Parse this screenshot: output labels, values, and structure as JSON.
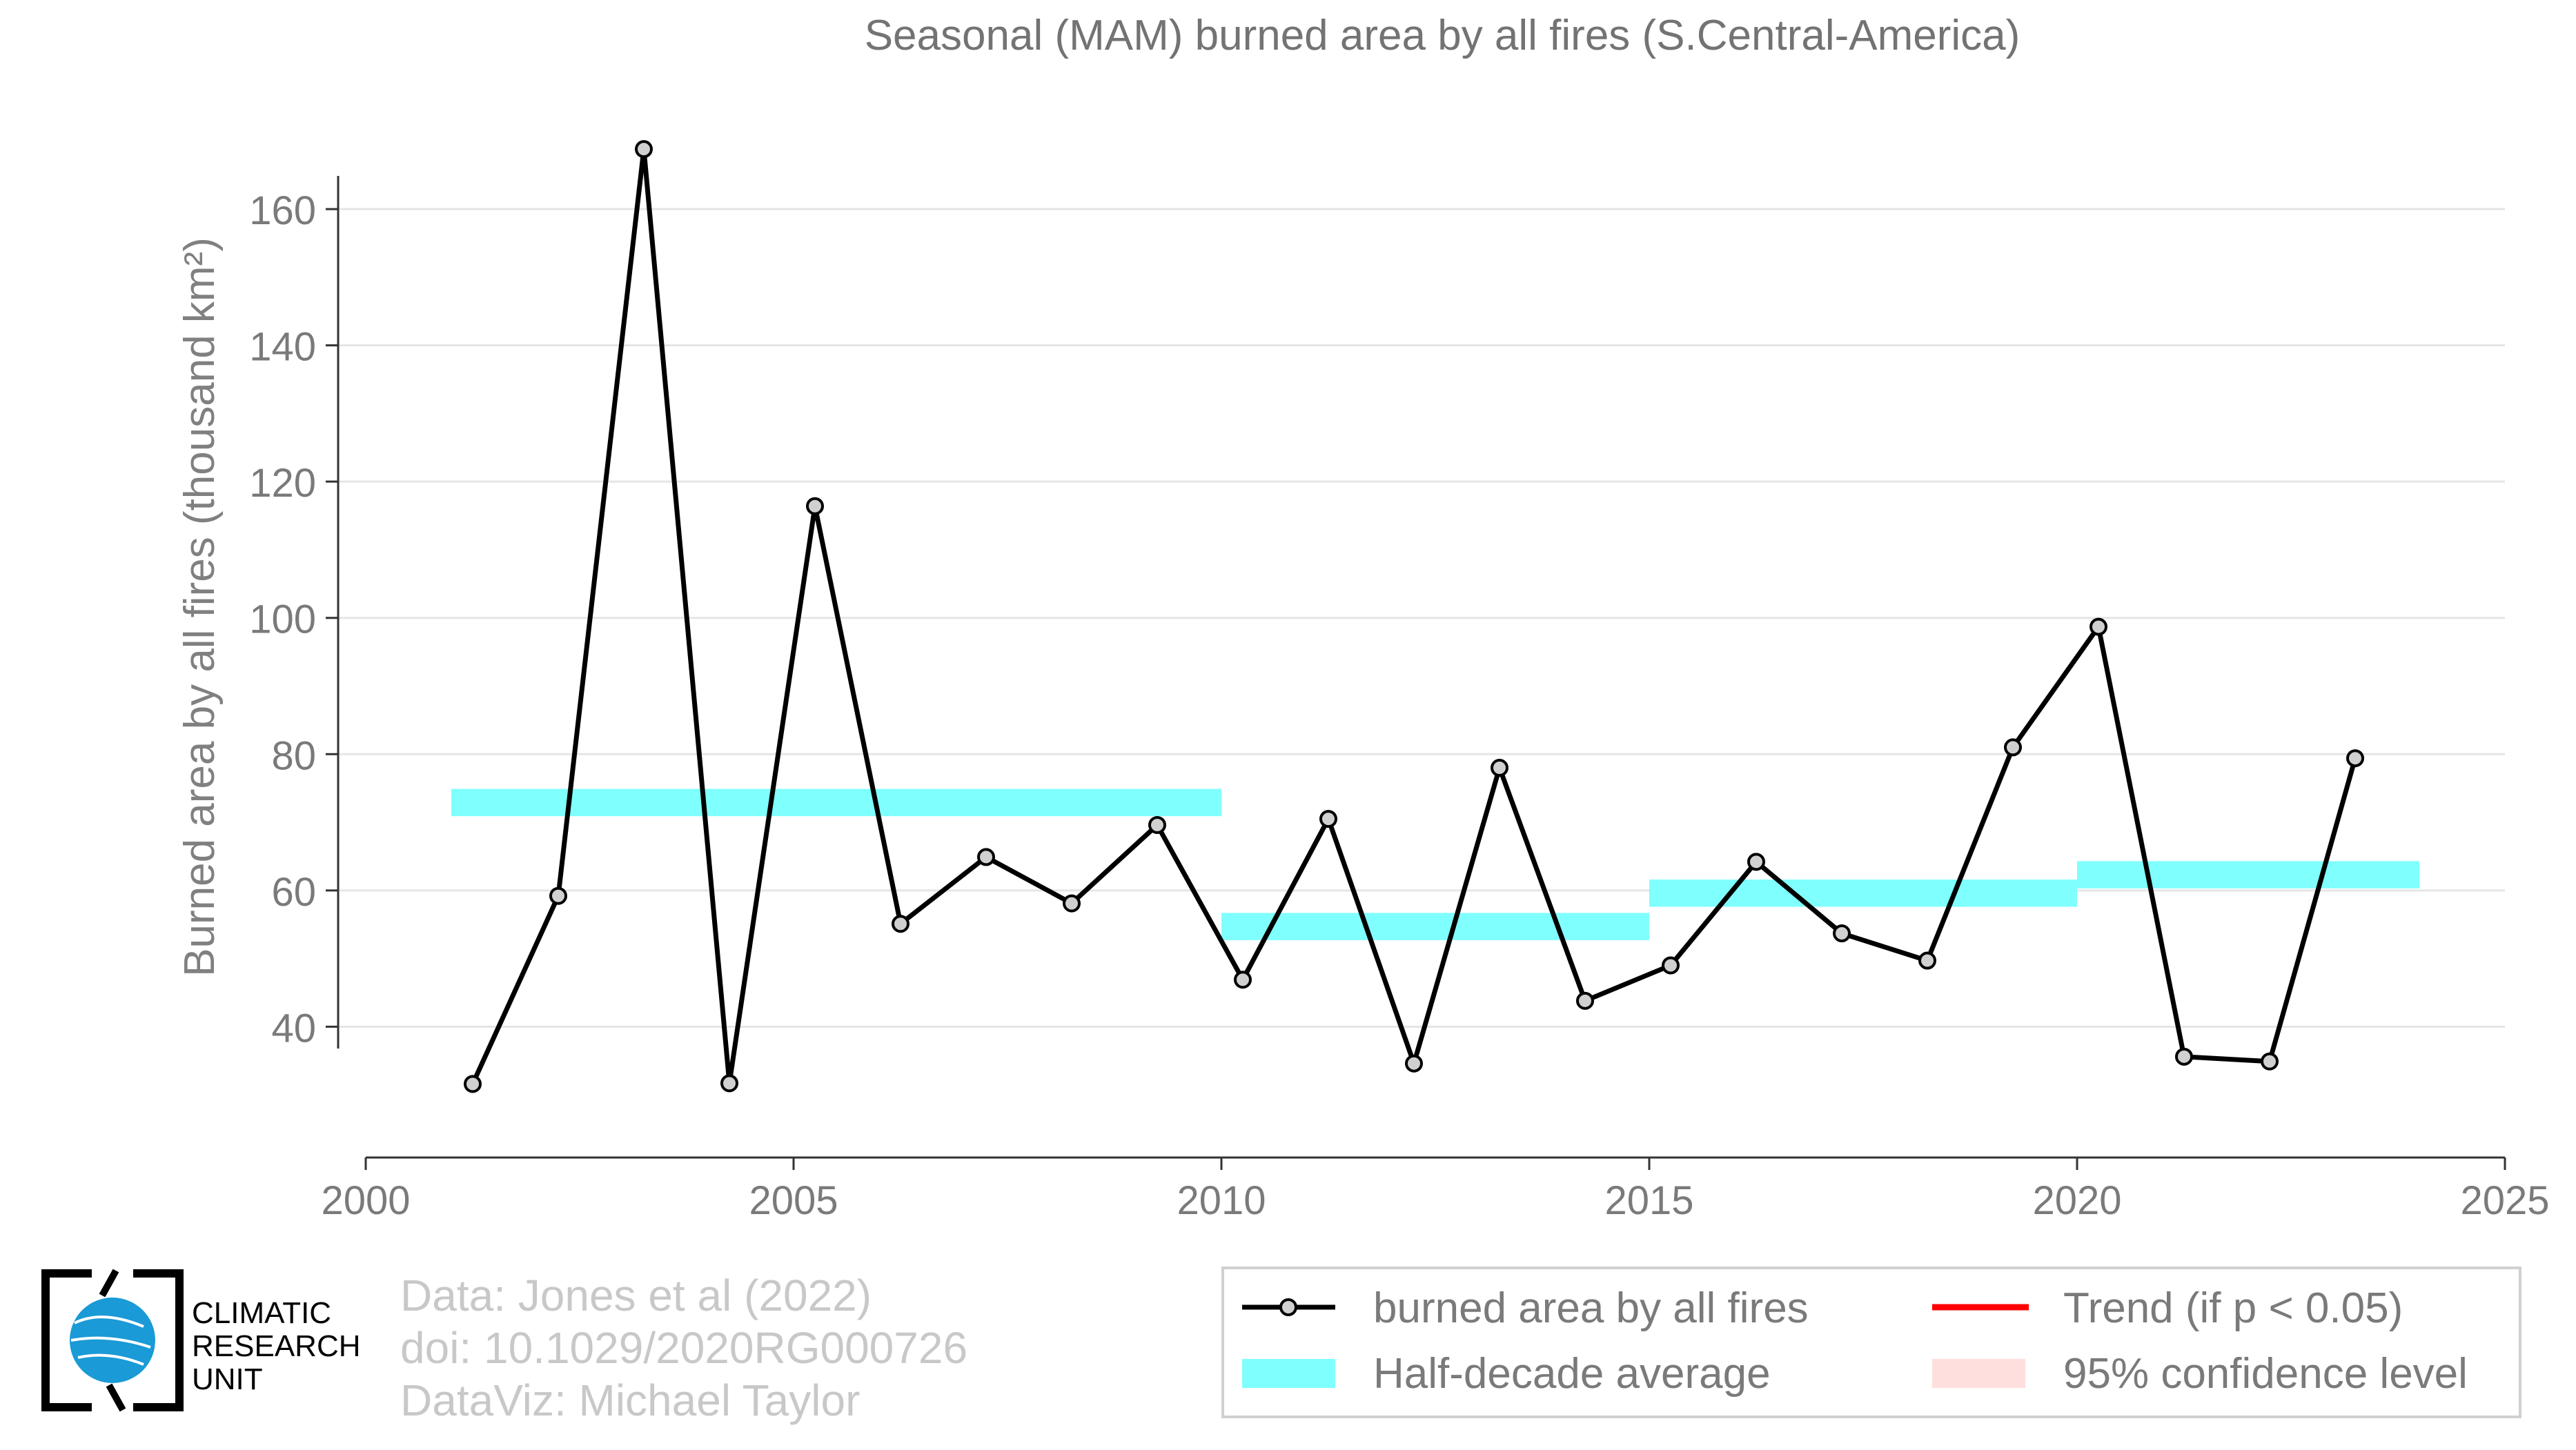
{
  "chart_data": {
    "type": "line",
    "title": "Seasonal (MAM) burned area by all fires (S.Central-America)",
    "ylabel": "Burned area by all fires (thousand km²)",
    "xlabel": "",
    "xlim": [
      2000,
      2025
    ],
    "ylim": [
      20,
      170
    ],
    "x_ticks": [
      "2000",
      "2005",
      "2010",
      "2015",
      "2020",
      "2025"
    ],
    "y_ticks": [
      "40",
      "60",
      "80",
      "100",
      "120",
      "140",
      "160"
    ],
    "grid": "horizontal",
    "legend_placement": "bottom-right",
    "series": [
      {
        "name": "burned area by all fires",
        "color": "#000000",
        "x": [
          2001.25,
          2002.25,
          2003.25,
          2004.25,
          2005.25,
          2006.25,
          2007.25,
          2008.25,
          2009.25,
          2010.25,
          2011.25,
          2012.25,
          2013.25,
          2014.25,
          2015.25,
          2016.25,
          2017.25,
          2018.25,
          2019.25,
          2020.25,
          2021.25,
          2022.25,
          2023.25
        ],
        "y": [
          31.6,
          59.2,
          168.8,
          31.7,
          116.4,
          55.1,
          64.9,
          58.1,
          69.6,
          46.9,
          70.5,
          34.6,
          78.0,
          43.8,
          49.0,
          64.2,
          53.7,
          49.7,
          81.0,
          98.7,
          35.6,
          34.9,
          79.4
        ]
      }
    ],
    "half_decade_average": {
      "name": "Half-decade average",
      "color": "#80ffff",
      "segments": [
        {
          "x0": 2001,
          "x1": 2010,
          "y": 72.9
        },
        {
          "x0": 2010,
          "x1": 2015,
          "y": 54.7
        },
        {
          "x0": 2015,
          "x1": 2020,
          "y": 59.6
        },
        {
          "x0": 2020,
          "x1": 2024,
          "y": 62.3
        }
      ]
    },
    "legend": [
      {
        "label": "burned area by all fires",
        "kind": "line-marker",
        "color": "#000000"
      },
      {
        "label": "Trend (if p < 0.05)",
        "kind": "line",
        "color": "#ff0000"
      },
      {
        "label": "Half-decade average",
        "kind": "band",
        "color": "#80ffff"
      },
      {
        "label": "95% confidence level",
        "kind": "band",
        "color": "#ffdede"
      }
    ]
  },
  "credits": {
    "line1": "Data: Jones et al (2022)",
    "line2": "doi: 10.1029/2020RG000726",
    "line3": "DataViz: Michael Taylor"
  },
  "logo": {
    "line1": "CLIMATIC",
    "line2": "RESEARCH",
    "line3": "UNIT"
  }
}
